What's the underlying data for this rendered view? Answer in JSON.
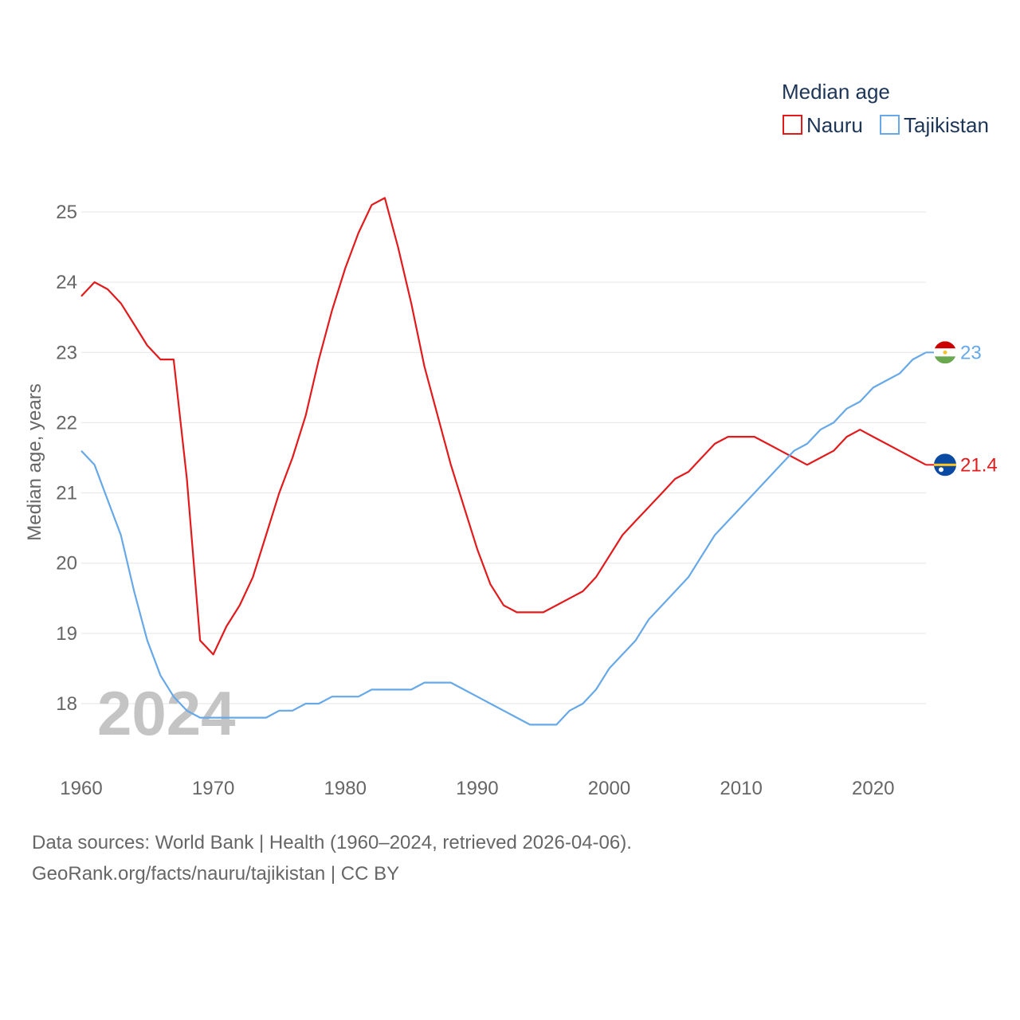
{
  "chart_data": {
    "type": "line",
    "title": "",
    "legend_title": "Median age",
    "ylabel": "Median age, years",
    "xlabel": "",
    "current_year_label": "2024",
    "xlim": [
      1960,
      2024
    ],
    "ylim": [
      17.0,
      25.4
    ],
    "x_ticks": [
      1960,
      1970,
      1980,
      1990,
      2000,
      2010,
      2020
    ],
    "y_ticks": [
      18,
      19,
      20,
      21,
      22,
      23,
      24,
      25
    ],
    "grid": true,
    "legend_position": "top-right",
    "x": [
      1960,
      1961,
      1962,
      1963,
      1964,
      1965,
      1966,
      1967,
      1968,
      1969,
      1970,
      1971,
      1972,
      1973,
      1974,
      1975,
      1976,
      1977,
      1978,
      1979,
      1980,
      1981,
      1982,
      1983,
      1984,
      1985,
      1986,
      1987,
      1988,
      1989,
      1990,
      1991,
      1992,
      1993,
      1994,
      1995,
      1996,
      1997,
      1998,
      1999,
      2000,
      2001,
      2002,
      2003,
      2004,
      2005,
      2006,
      2007,
      2008,
      2009,
      2010,
      2011,
      2012,
      2013,
      2014,
      2015,
      2016,
      2017,
      2018,
      2019,
      2020,
      2021,
      2022,
      2023,
      2024
    ],
    "series": [
      {
        "name": "Nauru",
        "color": "#e31a1c",
        "end_label": "21.4",
        "values": [
          23.8,
          24.0,
          23.9,
          23.7,
          23.4,
          23.1,
          22.9,
          22.9,
          21.2,
          18.9,
          18.7,
          19.1,
          19.4,
          19.8,
          20.4,
          21.0,
          21.5,
          22.1,
          22.9,
          23.6,
          24.2,
          24.7,
          25.1,
          25.2,
          24.5,
          23.7,
          22.8,
          22.1,
          21.4,
          20.8,
          20.2,
          19.7,
          19.4,
          19.3,
          19.3,
          19.3,
          19.4,
          19.5,
          19.6,
          19.8,
          20.1,
          20.4,
          20.6,
          20.8,
          21.0,
          21.2,
          21.3,
          21.5,
          21.7,
          21.8,
          21.8,
          21.8,
          21.7,
          21.6,
          21.5,
          21.4,
          21.5,
          21.6,
          21.8,
          21.9,
          21.8,
          21.7,
          21.6,
          21.5,
          21.4
        ]
      },
      {
        "name": "Tajikistan",
        "color": "#66a8e8",
        "end_label": "23",
        "values": [
          21.6,
          21.4,
          20.9,
          20.4,
          19.6,
          18.9,
          18.4,
          18.1,
          17.9,
          17.8,
          17.8,
          17.8,
          17.8,
          17.8,
          17.8,
          17.9,
          17.9,
          18.0,
          18.0,
          18.1,
          18.1,
          18.1,
          18.2,
          18.2,
          18.2,
          18.2,
          18.3,
          18.3,
          18.3,
          18.2,
          18.1,
          18.0,
          17.9,
          17.8,
          17.7,
          17.7,
          17.7,
          17.9,
          18.0,
          18.2,
          18.5,
          18.7,
          18.9,
          19.2,
          19.4,
          19.6,
          19.8,
          20.1,
          20.4,
          20.6,
          20.8,
          21.0,
          21.2,
          21.4,
          21.6,
          21.7,
          21.9,
          22.0,
          22.2,
          22.3,
          22.5,
          22.6,
          22.7,
          22.9,
          23.0
        ]
      }
    ]
  },
  "footer": {
    "sources": "Data sources: World Bank | Health (1960–2024, retrieved 2026-04-06).",
    "attribution": "GeoRank.org/facts/nauru/tajikistan | CC BY"
  }
}
